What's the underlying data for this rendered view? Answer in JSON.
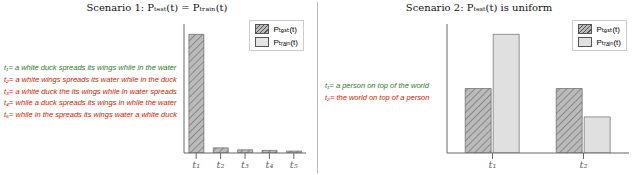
{
  "chart_data": [
    {
      "type": "bar",
      "title": "Scenario 1: Pₜₑₛₜ(t) = Pₜᵣₐᵢₙ(t)",
      "categories": [
        "t₁",
        "t₂",
        "t₃",
        "t₄",
        "t₅"
      ],
      "series": [
        {
          "name": "Pₜₑₛₜ(t)",
          "color": "#bbbbbb",
          "values": [
            0.92,
            0.04,
            0.025,
            0.02,
            0.015
          ]
        },
        {
          "name": "Pₜᵣₐᵢₙ(t)",
          "color": "#e4e4e4",
          "values": [
            null,
            null,
            null,
            null,
            null
          ]
        }
      ],
      "ylim": [
        0,
        1.0
      ],
      "yticks": [],
      "tick_labels": "x",
      "legend": "upper right",
      "annotations": [
        {
          "text": "t₁= a white duck spreads its wings while in the water",
          "color": "#2a7a2a"
        },
        {
          "text": "t₂= a white wings spreads its water while in the duck",
          "color": "#cc2200"
        },
        {
          "text": "t₃= a white duck the its wings while in water spreads",
          "color": "#cc2200"
        },
        {
          "text": "t₄= while a duck spreads its wings in while the water",
          "color": "#cc2200"
        },
        {
          "text": "t₅= while in the spreads its wings water a white duck",
          "color": "#cc2200"
        }
      ]
    },
    {
      "type": "bar",
      "title": "Scenario 2: Pₜₑₛₜ(t) is uniform",
      "categories": [
        "t₁",
        "t₂"
      ],
      "series": [
        {
          "name": "Pₜₑₛₜ(t)",
          "color": "#bbbbbb",
          "values": [
            0.5,
            0.5
          ]
        },
        {
          "name": "Pₜᵣₐᵢₙ(t)",
          "color": "#e0e0e0",
          "values": [
            0.92,
            0.28
          ]
        }
      ],
      "ylim": [
        0,
        1.0
      ],
      "yticks": [],
      "tick_labels": "x",
      "legend": "upper right",
      "annotations": [
        {
          "text": "t₁= a person on top of the world",
          "color": "#2a7a2a"
        },
        {
          "text": "t₂= the world on top of a person",
          "color": "#cc2200"
        }
      ]
    }
  ]
}
